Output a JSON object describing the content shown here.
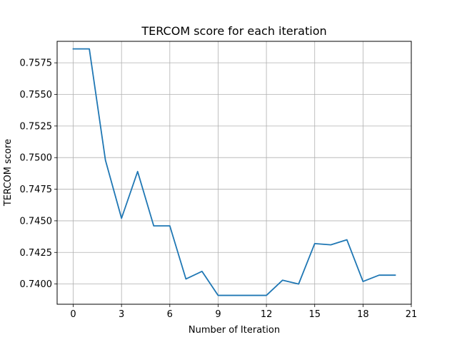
{
  "chart_data": {
    "type": "line",
    "title": "TERCOM score for each iteration",
    "xlabel": "Number of Iteration",
    "ylabel": "TERCOM score",
    "xlim": [
      -1,
      21
    ],
    "ylim": [
      0.7384,
      0.7592
    ],
    "xticks": [
      0,
      3,
      6,
      9,
      12,
      15,
      18,
      21
    ],
    "yticks": [
      0.74,
      0.7425,
      0.745,
      0.7475,
      0.75,
      0.7525,
      0.755,
      0.7575
    ],
    "ytick_labels": [
      "0.7400",
      "0.7425",
      "0.7450",
      "0.7475",
      "0.7500",
      "0.7525",
      "0.7550",
      "0.7575"
    ],
    "xtick_labels": [
      "0",
      "3",
      "6",
      "9",
      "12",
      "15",
      "18",
      "21"
    ],
    "grid": true,
    "legend": "none",
    "series": [
      {
        "color": "#1f77b4",
        "x": [
          0,
          1,
          2,
          3,
          4,
          5,
          6,
          7,
          8,
          9,
          10,
          11,
          12,
          13,
          14,
          15,
          16,
          17,
          18,
          19,
          20
        ],
        "y": [
          0.7586,
          0.7586,
          0.7498,
          0.7452,
          0.7489,
          0.7446,
          0.7446,
          0.7404,
          0.741,
          0.7391,
          0.7391,
          0.7391,
          0.7391,
          0.7403,
          0.74,
          0.7432,
          0.7431,
          0.7435,
          0.7402,
          0.7407,
          0.7407
        ]
      }
    ]
  }
}
